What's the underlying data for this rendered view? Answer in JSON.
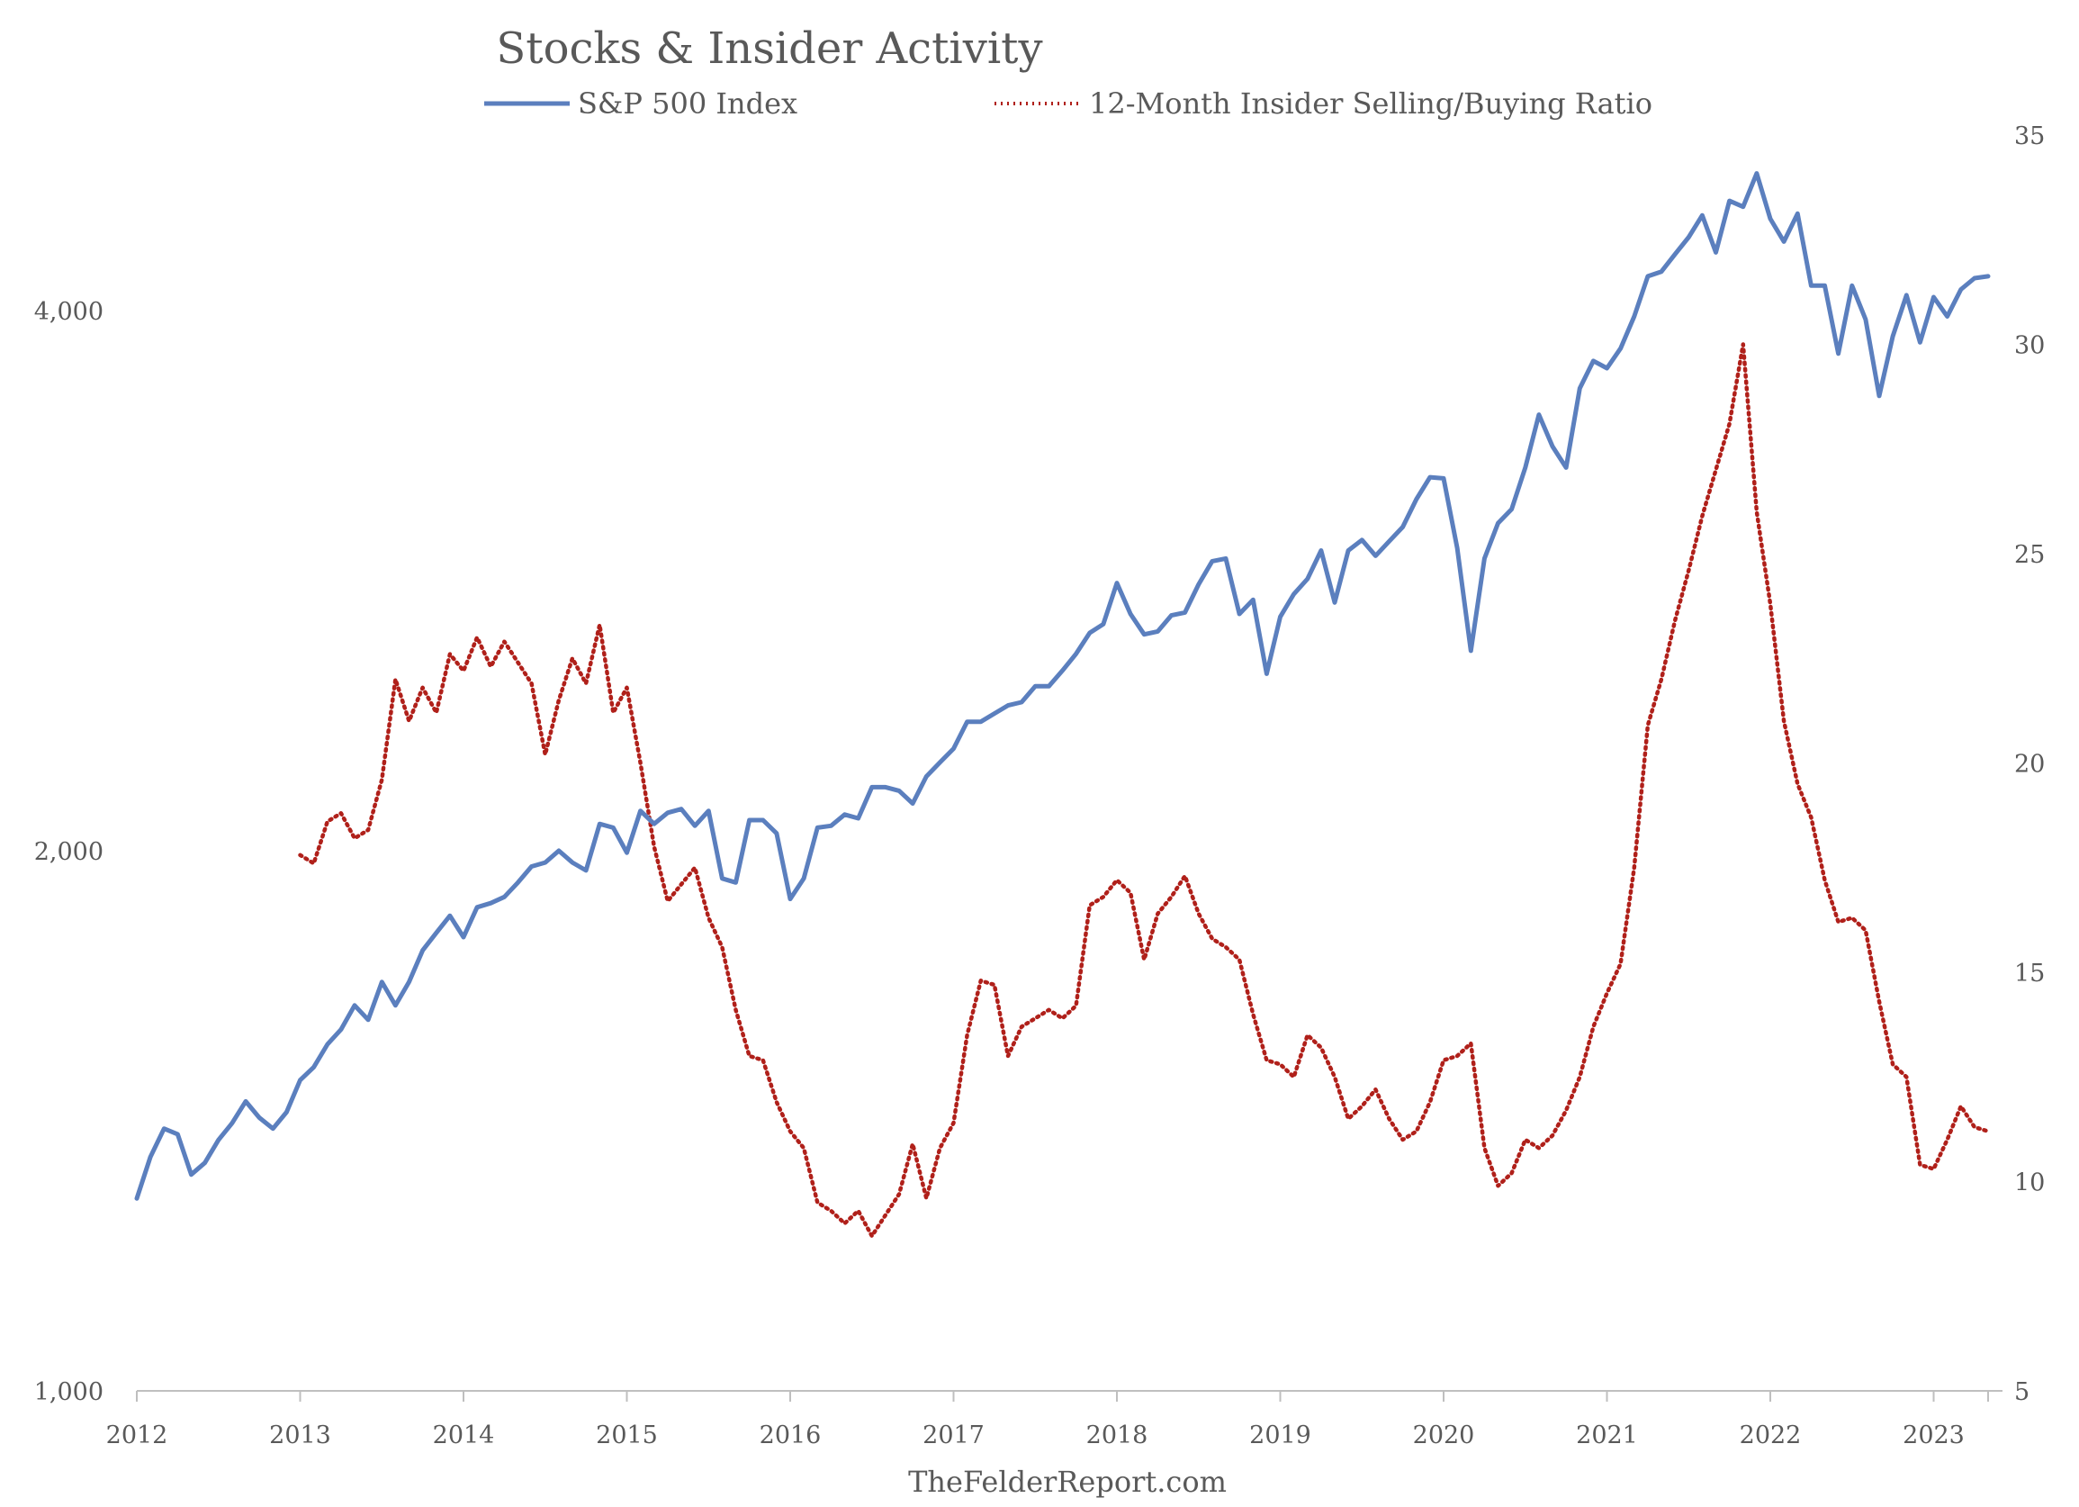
{
  "chart_data": {
    "type": "line",
    "title": "Stocks & Insider Activity",
    "footer": "TheFelderReport.com",
    "legend_position": "top-center",
    "grid": false,
    "colors": {
      "sp500": "#5b7fbe",
      "ratio": "#b0201a",
      "axis": "#bfbfbf",
      "text": "#595959"
    },
    "x_axis": {
      "type": "date",
      "range": [
        "2012-01",
        "2023-05"
      ],
      "ticks": [
        "2012",
        "2013",
        "2014",
        "2015",
        "2016",
        "2017",
        "2018",
        "2019",
        "2020",
        "2021",
        "2022",
        "2023"
      ]
    },
    "y_left": {
      "scale": "log",
      "range": [
        1000,
        4650
      ],
      "ticks": [
        1000,
        2000,
        4000
      ],
      "tick_labels": [
        "1,000",
        "2,000",
        "4,000"
      ]
    },
    "y_right": {
      "scale": "linear",
      "range": [
        5,
        35
      ],
      "ticks": [
        5,
        10,
        15,
        20,
        25,
        30,
        35
      ],
      "tick_labels": [
        "5",
        "10",
        "15",
        "20",
        "25",
        "30",
        "35"
      ]
    },
    "series": [
      {
        "name": "S&P 500 Index",
        "axis": "left",
        "style": "solid",
        "points": [
          [
            "2012-01",
            1280
          ],
          [
            "2012-02",
            1350
          ],
          [
            "2012-03",
            1400
          ],
          [
            "2012-04",
            1390
          ],
          [
            "2012-05",
            1320
          ],
          [
            "2012-06",
            1340
          ],
          [
            "2012-07",
            1380
          ],
          [
            "2012-08",
            1410
          ],
          [
            "2012-09",
            1450
          ],
          [
            "2012-10",
            1420
          ],
          [
            "2012-11",
            1400
          ],
          [
            "2012-12",
            1430
          ],
          [
            "2013-01",
            1490
          ],
          [
            "2013-02",
            1515
          ],
          [
            "2013-03",
            1560
          ],
          [
            "2013-04",
            1590
          ],
          [
            "2013-05",
            1640
          ],
          [
            "2013-06",
            1610
          ],
          [
            "2013-07",
            1690
          ],
          [
            "2013-08",
            1640
          ],
          [
            "2013-09",
            1690
          ],
          [
            "2013-10",
            1760
          ],
          [
            "2013-11",
            1800
          ],
          [
            "2013-12",
            1840
          ],
          [
            "2014-01",
            1790
          ],
          [
            "2014-02",
            1860
          ],
          [
            "2014-03",
            1870
          ],
          [
            "2014-04",
            1885
          ],
          [
            "2014-05",
            1920
          ],
          [
            "2014-06",
            1960
          ],
          [
            "2014-07",
            1970
          ],
          [
            "2014-08",
            2000
          ],
          [
            "2014-09",
            1970
          ],
          [
            "2014-10",
            1950
          ],
          [
            "2014-11",
            2070
          ],
          [
            "2014-12",
            2060
          ],
          [
            "2015-01",
            1995
          ],
          [
            "2015-02",
            2105
          ],
          [
            "2015-03",
            2070
          ],
          [
            "2015-04",
            2100
          ],
          [
            "2015-05",
            2110
          ],
          [
            "2015-06",
            2065
          ],
          [
            "2015-07",
            2105
          ],
          [
            "2015-08",
            1930
          ],
          [
            "2015-09",
            1920
          ],
          [
            "2015-10",
            2080
          ],
          [
            "2015-11",
            2080
          ],
          [
            "2015-12",
            2045
          ],
          [
            "2016-01",
            1880
          ],
          [
            "2016-02",
            1930
          ],
          [
            "2016-03",
            2060
          ],
          [
            "2016-04",
            2065
          ],
          [
            "2016-05",
            2095
          ],
          [
            "2016-06",
            2085
          ],
          [
            "2016-07",
            2170
          ],
          [
            "2016-08",
            2170
          ],
          [
            "2016-09",
            2160
          ],
          [
            "2016-10",
            2125
          ],
          [
            "2016-11",
            2200
          ],
          [
            "2016-12",
            2240
          ],
          [
            "2017-01",
            2280
          ],
          [
            "2017-02",
            2360
          ],
          [
            "2017-03",
            2360
          ],
          [
            "2017-04",
            2385
          ],
          [
            "2017-05",
            2410
          ],
          [
            "2017-06",
            2420
          ],
          [
            "2017-07",
            2470
          ],
          [
            "2017-08",
            2470
          ],
          [
            "2017-09",
            2520
          ],
          [
            "2017-10",
            2575
          ],
          [
            "2017-11",
            2645
          ],
          [
            "2017-12",
            2675
          ],
          [
            "2018-01",
            2820
          ],
          [
            "2018-02",
            2710
          ],
          [
            "2018-03",
            2640
          ],
          [
            "2018-04",
            2650
          ],
          [
            "2018-05",
            2705
          ],
          [
            "2018-06",
            2715
          ],
          [
            "2018-07",
            2815
          ],
          [
            "2018-08",
            2900
          ],
          [
            "2018-09",
            2910
          ],
          [
            "2018-10",
            2710
          ],
          [
            "2018-11",
            2760
          ],
          [
            "2018-12",
            2510
          ],
          [
            "2019-01",
            2700
          ],
          [
            "2019-02",
            2780
          ],
          [
            "2019-03",
            2835
          ],
          [
            "2019-04",
            2940
          ],
          [
            "2019-05",
            2750
          ],
          [
            "2019-06",
            2940
          ],
          [
            "2019-07",
            2980
          ],
          [
            "2019-08",
            2920
          ],
          [
            "2019-09",
            2975
          ],
          [
            "2019-10",
            3030
          ],
          [
            "2019-11",
            3140
          ],
          [
            "2019-12",
            3230
          ],
          [
            "2020-01",
            3225
          ],
          [
            "2020-02",
            2950
          ],
          [
            "2020-03",
            2585
          ],
          [
            "2020-04",
            2910
          ],
          [
            "2020-05",
            3045
          ],
          [
            "2020-06",
            3100
          ],
          [
            "2020-07",
            3270
          ],
          [
            "2020-08",
            3500
          ],
          [
            "2020-09",
            3360
          ],
          [
            "2020-10",
            3270
          ],
          [
            "2020-11",
            3620
          ],
          [
            "2020-12",
            3750
          ],
          [
            "2021-01",
            3715
          ],
          [
            "2021-02",
            3810
          ],
          [
            "2021-03",
            3970
          ],
          [
            "2021-04",
            4180
          ],
          [
            "2021-05",
            4205
          ],
          [
            "2021-06",
            4300
          ],
          [
            "2021-07",
            4395
          ],
          [
            "2021-08",
            4520
          ],
          [
            "2021-09",
            4310
          ],
          [
            "2021-10",
            4605
          ],
          [
            "2021-11",
            4570
          ],
          [
            "2021-12",
            4770
          ],
          [
            "2022-01",
            4500
          ],
          [
            "2022-02",
            4370
          ],
          [
            "2022-03",
            4530
          ],
          [
            "2022-04",
            4130
          ],
          [
            "2022-05",
            4130
          ],
          [
            "2022-06",
            3785
          ],
          [
            "2022-07",
            4130
          ],
          [
            "2022-08",
            3955
          ],
          [
            "2022-09",
            3585
          ],
          [
            "2022-10",
            3870
          ],
          [
            "2022-11",
            4080
          ],
          [
            "2022-12",
            3840
          ],
          [
            "2023-01",
            4070
          ],
          [
            "2023-02",
            3970
          ],
          [
            "2023-03",
            4110
          ],
          [
            "2023-04",
            4170
          ],
          [
            "2023-05",
            4180
          ]
        ]
      },
      {
        "name": "12-Month Insider Selling/Buying Ratio",
        "axis": "right",
        "style": "dotted",
        "points": [
          [
            "2013-01",
            17.8
          ],
          [
            "2013-02",
            17.6
          ],
          [
            "2013-03",
            18.6
          ],
          [
            "2013-04",
            18.8
          ],
          [
            "2013-05",
            18.2
          ],
          [
            "2013-06",
            18.4
          ],
          [
            "2013-07",
            19.6
          ],
          [
            "2013-08",
            22.0
          ],
          [
            "2013-09",
            21.0
          ],
          [
            "2013-10",
            21.8
          ],
          [
            "2013-11",
            21.2
          ],
          [
            "2013-12",
            22.6
          ],
          [
            "2014-01",
            22.2
          ],
          [
            "2014-02",
            23.0
          ],
          [
            "2014-03",
            22.3
          ],
          [
            "2014-04",
            22.9
          ],
          [
            "2014-05",
            22.4
          ],
          [
            "2014-06",
            21.9
          ],
          [
            "2014-07",
            20.2
          ],
          [
            "2014-08",
            21.5
          ],
          [
            "2014-09",
            22.5
          ],
          [
            "2014-10",
            21.9
          ],
          [
            "2014-11",
            23.3
          ],
          [
            "2014-12",
            21.2
          ],
          [
            "2015-01",
            21.8
          ],
          [
            "2015-02",
            20.0
          ],
          [
            "2015-03",
            18.0
          ],
          [
            "2015-04",
            16.7
          ],
          [
            "2015-05",
            17.1
          ],
          [
            "2015-06",
            17.5
          ],
          [
            "2015-07",
            16.3
          ],
          [
            "2015-08",
            15.6
          ],
          [
            "2015-09",
            14.1
          ],
          [
            "2015-10",
            13.0
          ],
          [
            "2015-11",
            12.9
          ],
          [
            "2015-12",
            11.9
          ],
          [
            "2016-01",
            11.2
          ],
          [
            "2016-02",
            10.8
          ],
          [
            "2016-03",
            9.5
          ],
          [
            "2016-04",
            9.3
          ],
          [
            "2016-05",
            9.0
          ],
          [
            "2016-06",
            9.3
          ],
          [
            "2016-07",
            8.7
          ],
          [
            "2016-08",
            9.2
          ],
          [
            "2016-09",
            9.7
          ],
          [
            "2016-10",
            10.9
          ],
          [
            "2016-11",
            9.6
          ],
          [
            "2016-12",
            10.8
          ],
          [
            "2017-01",
            11.4
          ],
          [
            "2017-02",
            13.5
          ],
          [
            "2017-03",
            14.8
          ],
          [
            "2017-04",
            14.7
          ],
          [
            "2017-05",
            13.0
          ],
          [
            "2017-06",
            13.7
          ],
          [
            "2017-07",
            13.9
          ],
          [
            "2017-08",
            14.1
          ],
          [
            "2017-09",
            13.9
          ],
          [
            "2017-10",
            14.2
          ],
          [
            "2017-11",
            16.6
          ],
          [
            "2017-12",
            16.8
          ],
          [
            "2018-01",
            17.2
          ],
          [
            "2018-02",
            16.9
          ],
          [
            "2018-03",
            15.3
          ],
          [
            "2018-04",
            16.4
          ],
          [
            "2018-05",
            16.8
          ],
          [
            "2018-06",
            17.3
          ],
          [
            "2018-07",
            16.4
          ],
          [
            "2018-08",
            15.8
          ],
          [
            "2018-09",
            15.6
          ],
          [
            "2018-10",
            15.3
          ],
          [
            "2018-11",
            14.0
          ],
          [
            "2018-12",
            12.9
          ],
          [
            "2019-01",
            12.8
          ],
          [
            "2019-02",
            12.5
          ],
          [
            "2019-03",
            13.5
          ],
          [
            "2019-04",
            13.2
          ],
          [
            "2019-05",
            12.5
          ],
          [
            "2019-06",
            11.5
          ],
          [
            "2019-07",
            11.8
          ],
          [
            "2019-08",
            12.2
          ],
          [
            "2019-09",
            11.5
          ],
          [
            "2019-10",
            11.0
          ],
          [
            "2019-11",
            11.2
          ],
          [
            "2019-12",
            11.9
          ],
          [
            "2020-01",
            12.9
          ],
          [
            "2020-02",
            13.0
          ],
          [
            "2020-03",
            13.3
          ],
          [
            "2020-04",
            10.8
          ],
          [
            "2020-05",
            9.9
          ],
          [
            "2020-06",
            10.2
          ],
          [
            "2020-07",
            11.0
          ],
          [
            "2020-08",
            10.8
          ],
          [
            "2020-09",
            11.1
          ],
          [
            "2020-10",
            11.7
          ],
          [
            "2020-11",
            12.5
          ],
          [
            "2020-12",
            13.7
          ],
          [
            "2021-01",
            14.5
          ],
          [
            "2021-02",
            15.2
          ],
          [
            "2021-03",
            17.5
          ],
          [
            "2021-04",
            20.9
          ],
          [
            "2021-05",
            22.0
          ],
          [
            "2021-06",
            23.4
          ],
          [
            "2021-07",
            24.6
          ],
          [
            "2021-08",
            25.9
          ],
          [
            "2021-09",
            27.0
          ],
          [
            "2021-10",
            28.1
          ],
          [
            "2021-11",
            30.0
          ],
          [
            "2021-12",
            26.0
          ],
          [
            "2022-01",
            23.8
          ],
          [
            "2022-02",
            21.0
          ],
          [
            "2022-03",
            19.5
          ],
          [
            "2022-04",
            18.7
          ],
          [
            "2022-05",
            17.2
          ],
          [
            "2022-06",
            16.2
          ],
          [
            "2022-07",
            16.3
          ],
          [
            "2022-08",
            16.0
          ],
          [
            "2022-09",
            14.3
          ],
          [
            "2022-10",
            12.8
          ],
          [
            "2022-11",
            12.5
          ],
          [
            "2022-12",
            10.4
          ],
          [
            "2023-01",
            10.3
          ],
          [
            "2023-02",
            11.0
          ],
          [
            "2023-03",
            11.8
          ],
          [
            "2023-04",
            11.3
          ],
          [
            "2023-05",
            11.2
          ]
        ]
      }
    ]
  }
}
